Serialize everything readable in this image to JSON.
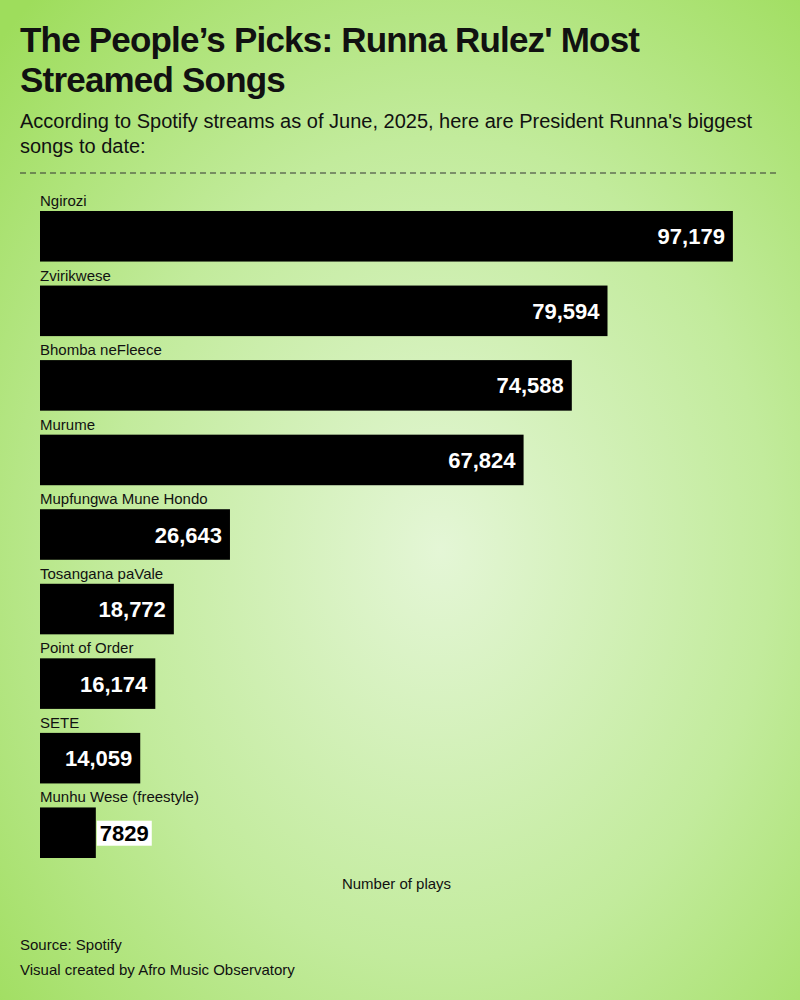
{
  "chart_data": {
    "type": "bar",
    "orientation": "horizontal",
    "title": "The People’s Picks: Runna Rulez' Most Streamed Songs",
    "subtitle": "According to Spotify streams as of June, 2025, here are President Runna's biggest songs to date:",
    "categories": [
      "Ngirozi",
      "Zvirikwese",
      "Bhomba neFleece",
      "Murume",
      "Mupfungwa Mune Hondo",
      "Tosangana paVale",
      "Point of Order",
      "SETE",
      "Munhu Wese (freestyle)"
    ],
    "values": [
      97179,
      79594,
      74588,
      67824,
      26643,
      18772,
      16174,
      14059,
      7829
    ],
    "value_labels": [
      "97,179",
      "79,594",
      "74,588",
      "67,824",
      "26,643",
      "18,772",
      "16,174",
      "14,059",
      "7829"
    ],
    "xlabel": "Number of plays",
    "xlim": [
      0,
      100000
    ],
    "color": "#000000",
    "data_labels": true,
    "tick_labels": false,
    "grid": false,
    "source": "Source: Spotify",
    "credit": "Visual created by Afro Music Observatory"
  }
}
